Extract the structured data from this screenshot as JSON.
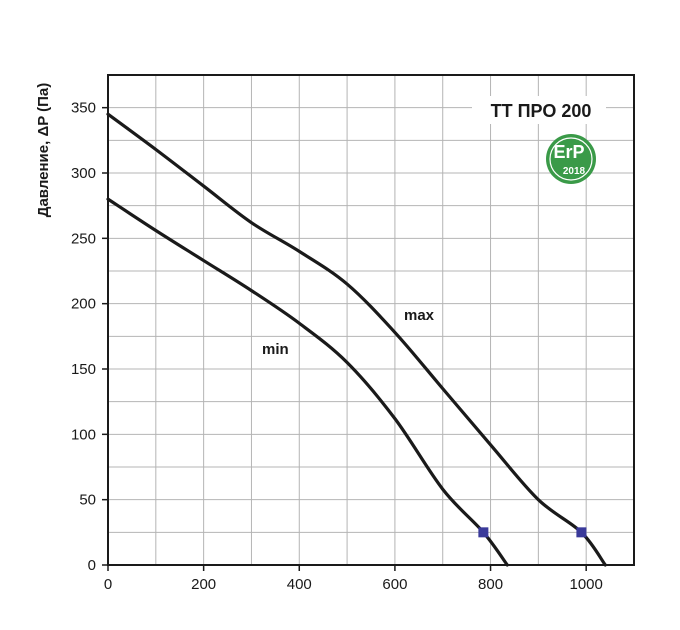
{
  "chart_data": {
    "type": "line",
    "title": "TT ПРО 200",
    "xlabel": "",
    "ylabel": "Давление, ΔP (Па)",
    "xlim": [
      0,
      1100
    ],
    "ylim": [
      0,
      375
    ],
    "x_ticks": [
      0,
      200,
      400,
      600,
      800,
      1000
    ],
    "y_ticks": [
      0,
      50,
      100,
      150,
      200,
      250,
      300,
      350
    ],
    "grid": true,
    "series": [
      {
        "name": "max",
        "color": "#1a1a1a",
        "x": [
          0,
          100,
          200,
          300,
          400,
          500,
          600,
          700,
          800,
          900,
          990,
          1040
        ],
        "y": [
          345,
          318,
          290,
          262,
          240,
          215,
          178,
          135,
          92,
          50,
          25,
          0
        ],
        "marker_point": {
          "x": 990,
          "y": 25
        }
      },
      {
        "name": "min",
        "color": "#1a1a1a",
        "x": [
          0,
          100,
          200,
          300,
          400,
          500,
          600,
          700,
          785,
          835
        ],
        "y": [
          280,
          256,
          233,
          210,
          185,
          155,
          112,
          58,
          25,
          0
        ],
        "marker_point": {
          "x": 785,
          "y": 25
        }
      }
    ],
    "marker_color": "#3a3a9a",
    "badge": {
      "main": "ErP",
      "year": "2018",
      "color": "#3a9a48"
    }
  }
}
